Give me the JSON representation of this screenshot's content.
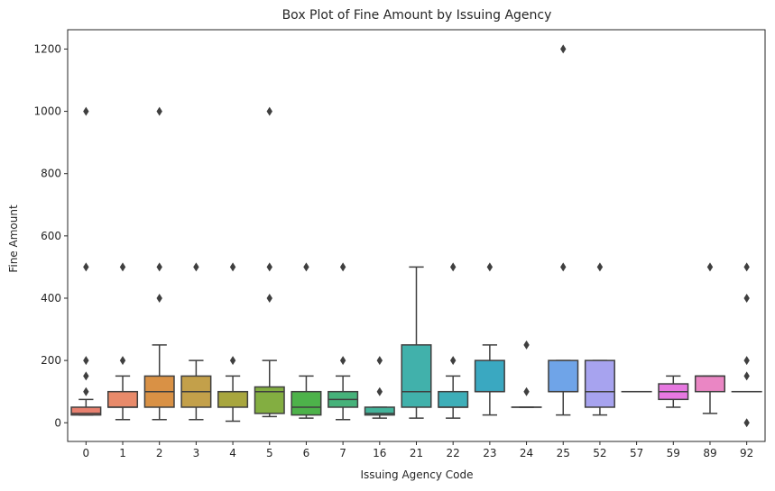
{
  "chart_data": {
    "type": "box",
    "title": "Box Plot of Fine Amount by Issuing Agency",
    "xlabel": "Issuing Agency Code",
    "ylabel": "Fine Amount",
    "ylim": [
      -60,
      1262
    ],
    "yticks": [
      0,
      200,
      400,
      600,
      800,
      1000,
      1200
    ],
    "grid": false,
    "legend": "none",
    "categories": [
      "0",
      "1",
      "2",
      "3",
      "4",
      "5",
      "6",
      "7",
      "16",
      "21",
      "22",
      "23",
      "24",
      "25",
      "52",
      "57",
      "59",
      "89",
      "92"
    ],
    "boxes": [
      {
        "category": "0",
        "color": "#e8806f",
        "whislo": 25,
        "q1": 25,
        "med": 30,
        "q3": 50,
        "whishi": 75,
        "fliers": [
          100,
          150,
          200,
          500,
          1000
        ]
      },
      {
        "category": "1",
        "color": "#e88a6a",
        "whislo": 10,
        "q1": 50,
        "med": 50,
        "q3": 100,
        "whishi": 150,
        "fliers": [
          200,
          500
        ]
      },
      {
        "category": "2",
        "color": "#d99145",
        "whislo": 10,
        "q1": 50,
        "med": 100,
        "q3": 150,
        "whishi": 250,
        "fliers": [
          400,
          500,
          1000
        ]
      },
      {
        "category": "3",
        "color": "#c3a04a",
        "whislo": 10,
        "q1": 50,
        "med": 100,
        "q3": 150,
        "whishi": 200,
        "fliers": [
          500
        ]
      },
      {
        "category": "4",
        "color": "#a8a63e",
        "whislo": 5,
        "q1": 50,
        "med": 100,
        "q3": 100,
        "whishi": 150,
        "fliers": [
          200,
          500
        ]
      },
      {
        "category": "5",
        "color": "#83ae41",
        "whislo": 20,
        "q1": 30,
        "med": 100,
        "q3": 115,
        "whishi": 200,
        "fliers": [
          400,
          500,
          1000
        ]
      },
      {
        "category": "6",
        "color": "#4db24a",
        "whislo": 15,
        "q1": 25,
        "med": 50,
        "q3": 100,
        "whishi": 150,
        "fliers": [
          500
        ]
      },
      {
        "category": "7",
        "color": "#46b27a",
        "whislo": 10,
        "q1": 50,
        "med": 75,
        "q3": 100,
        "whishi": 150,
        "fliers": [
          200,
          500
        ]
      },
      {
        "category": "16",
        "color": "#43b39a",
        "whislo": 15,
        "q1": 25,
        "med": 30,
        "q3": 50,
        "whishi": 50,
        "fliers": [
          100,
          200
        ]
      },
      {
        "category": "21",
        "color": "#41b1ab",
        "whislo": 15,
        "q1": 50,
        "med": 100,
        "q3": 250,
        "whishi": 500,
        "fliers": []
      },
      {
        "category": "22",
        "color": "#3daeb8",
        "whislo": 15,
        "q1": 50,
        "med": 50,
        "q3": 100,
        "whishi": 150,
        "fliers": [
          200,
          500
        ]
      },
      {
        "category": "23",
        "color": "#3aa8c1",
        "whislo": 25,
        "q1": 100,
        "med": 100,
        "q3": 200,
        "whishi": 250,
        "fliers": [
          500
        ]
      },
      {
        "category": "24",
        "color": "#46a3d0",
        "whislo": 50,
        "q1": 50,
        "med": 50,
        "q3": 50,
        "whishi": 50,
        "fliers": [
          100,
          250
        ]
      },
      {
        "category": "25",
        "color": "#6fa4e8",
        "whislo": 25,
        "q1": 100,
        "med": 100,
        "q3": 200,
        "whishi": 200,
        "fliers": [
          500,
          1200
        ]
      },
      {
        "category": "52",
        "color": "#a7a3ef",
        "whislo": 25,
        "q1": 50,
        "med": 100,
        "q3": 200,
        "whishi": 200,
        "fliers": [
          500
        ]
      },
      {
        "category": "57",
        "color": "#c990ea",
        "whislo": 100,
        "q1": 100,
        "med": 100,
        "q3": 100,
        "whishi": 100,
        "fliers": []
      },
      {
        "category": "59",
        "color": "#e678e0",
        "whislo": 50,
        "q1": 75,
        "med": 100,
        "q3": 125,
        "whishi": 150,
        "fliers": []
      },
      {
        "category": "89",
        "color": "#ea86c4",
        "whislo": 30,
        "q1": 100,
        "med": 150,
        "q3": 150,
        "whishi": 150,
        "fliers": [
          500
        ]
      },
      {
        "category": "92",
        "color": "#e88aa8",
        "whislo": 100,
        "q1": 100,
        "med": 100,
        "q3": 100,
        "whishi": 100,
        "fliers": [
          0,
          150,
          200,
          400,
          500
        ]
      }
    ]
  }
}
